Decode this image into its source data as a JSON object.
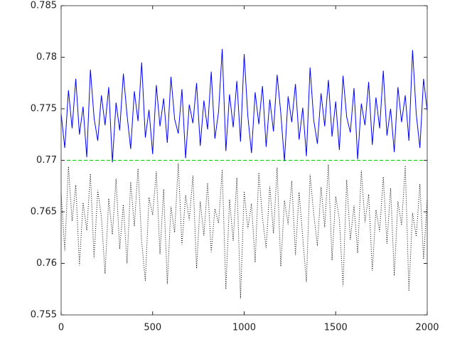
{
  "chart_data": {
    "type": "line",
    "x": [
      0,
      20,
      40,
      60,
      80,
      100,
      120,
      140,
      160,
      180,
      200,
      220,
      240,
      260,
      280,
      300,
      320,
      340,
      360,
      380,
      400,
      420,
      440,
      460,
      480,
      500,
      520,
      540,
      560,
      580,
      600,
      620,
      640,
      660,
      680,
      700,
      720,
      740,
      760,
      780,
      800,
      820,
      840,
      860,
      880,
      900,
      920,
      940,
      960,
      980,
      1000,
      1020,
      1040,
      1060,
      1080,
      1100,
      1120,
      1140,
      1160,
      1180,
      1200,
      1220,
      1240,
      1260,
      1280,
      1300,
      1320,
      1340,
      1360,
      1380,
      1400,
      1420,
      1440,
      1460,
      1480,
      1500,
      1520,
      1540,
      1560,
      1580,
      1600,
      1620,
      1640,
      1660,
      1680,
      1700,
      1720,
      1740,
      1760,
      1780,
      1800,
      1820,
      1840,
      1860,
      1880,
      1900,
      1920,
      1940,
      1960,
      1980,
      2000
    ],
    "series": [
      {
        "color": "#0000ff",
        "linestyle": "solid",
        "values": [
          0.7745,
          0.7712,
          0.7768,
          0.7731,
          0.7779,
          0.7725,
          0.7752,
          0.7703,
          0.7788,
          0.7741,
          0.7719,
          0.7763,
          0.7734,
          0.7771,
          0.7698,
          0.7756,
          0.7729,
          0.7784,
          0.7744,
          0.7711,
          0.7767,
          0.7738,
          0.7795,
          0.7722,
          0.7749,
          0.7706,
          0.7773,
          0.7733,
          0.776,
          0.7717,
          0.7781,
          0.774,
          0.7726,
          0.7769,
          0.7702,
          0.7754,
          0.7736,
          0.7775,
          0.7714,
          0.7758,
          0.773,
          0.7786,
          0.7721,
          0.7747,
          0.7808,
          0.7709,
          0.7764,
          0.7732,
          0.7777,
          0.7718,
          0.7803,
          0.7743,
          0.7707,
          0.7766,
          0.7735,
          0.7772,
          0.7713,
          0.7759,
          0.7728,
          0.7783,
          0.7746,
          0.7699,
          0.7762,
          0.7737,
          0.7774,
          0.772,
          0.7751,
          0.7704,
          0.779,
          0.7739,
          0.7716,
          0.7765,
          0.7733,
          0.7778,
          0.7723,
          0.7757,
          0.771,
          0.7782,
          0.7742,
          0.7727,
          0.777,
          0.7701,
          0.7755,
          0.7734,
          0.7776,
          0.7715,
          0.7761,
          0.7731,
          0.7787,
          0.7724,
          0.775,
          0.7708,
          0.7771,
          0.7737,
          0.7763,
          0.7719,
          0.7807,
          0.7745,
          0.7712,
          0.7779,
          0.7748
        ]
      },
      {
        "color": "#000000",
        "linestyle": "dotted",
        "values": [
          0.7668,
          0.7612,
          0.7694,
          0.7641,
          0.7676,
          0.7598,
          0.7659,
          0.7632,
          0.7687,
          0.7605,
          0.7671,
          0.7645,
          0.759,
          0.7663,
          0.7628,
          0.7682,
          0.7614,
          0.7657,
          0.76,
          0.7679,
          0.7636,
          0.7692,
          0.7621,
          0.7583,
          0.7664,
          0.7647,
          0.7689,
          0.7609,
          0.7672,
          0.758,
          0.7655,
          0.763,
          0.7697,
          0.7618,
          0.7666,
          0.7642,
          0.7685,
          0.7595,
          0.766,
          0.7627,
          0.7678,
          0.7611,
          0.7653,
          0.7639,
          0.7691,
          0.7575,
          0.7662,
          0.7622,
          0.7683,
          0.7566,
          0.767,
          0.7634,
          0.7658,
          0.7601,
          0.7688,
          0.7644,
          0.7615,
          0.7675,
          0.7629,
          0.7693,
          0.7597,
          0.7661,
          0.7638,
          0.768,
          0.7608,
          0.7669,
          0.7625,
          0.7582,
          0.7686,
          0.7648,
          0.7617,
          0.7674,
          0.7635,
          0.7696,
          0.7603,
          0.7665,
          0.7643,
          0.7578,
          0.7681,
          0.7623,
          0.7656,
          0.761,
          0.769,
          0.764,
          0.7667,
          0.7593,
          0.7652,
          0.7631,
          0.7684,
          0.7619,
          0.7673,
          0.7588,
          0.766,
          0.7637,
          0.7695,
          0.7573,
          0.7649,
          0.7626,
          0.7677,
          0.7604,
          0.7662
        ]
      },
      {
        "color": "#00cc00",
        "linestyle": "dashed",
        "x": [
          0,
          2000
        ],
        "values": [
          0.77,
          0.77
        ]
      }
    ],
    "xlim": [
      0,
      2000
    ],
    "xticks": [
      0,
      500,
      1000,
      1500,
      2000
    ],
    "ylim": [
      0.755,
      0.785
    ],
    "yticks": [
      0.755,
      0.76,
      0.765,
      0.77,
      0.775,
      0.78,
      0.785
    ],
    "grid": false
  }
}
